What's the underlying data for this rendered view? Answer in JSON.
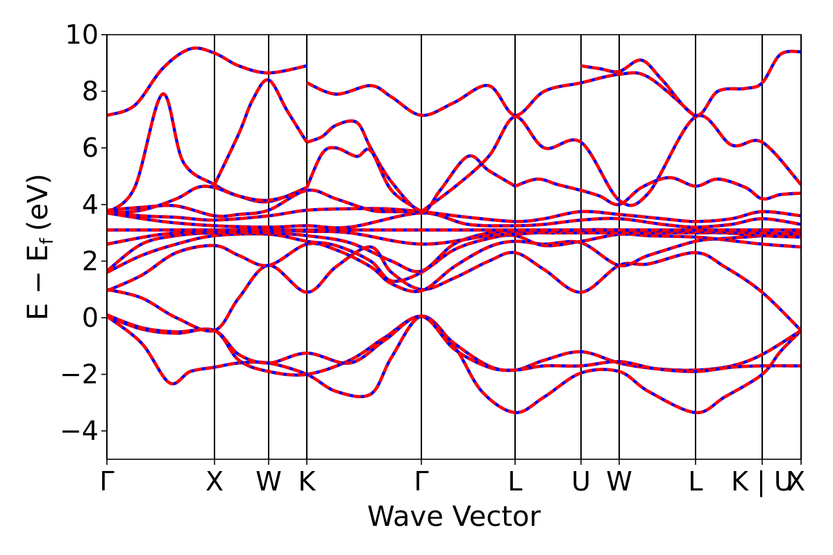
{
  "chart_data": {
    "type": "line",
    "title": "",
    "xlabel": "Wave Vector",
    "ylabel": "E − E",
    "ylabel_subscript": "f",
    "ylabel_unit": "(eV)",
    "ylim": [
      -5,
      10
    ],
    "y_ticks": [
      -4,
      -2,
      0,
      2,
      4,
      6,
      8,
      10
    ],
    "y_tick_labels": [
      "−4",
      "−2",
      "0",
      "2",
      "4",
      "6",
      "8",
      "10"
    ],
    "x_range": [
      0,
      100
    ],
    "kpoint_lines": [
      0,
      15.5,
      23.3,
      28.8,
      45.3,
      58.8,
      68.3,
      73.8,
      84.8,
      94.4,
      100
    ],
    "x_ticks": [
      {
        "label": "Γ",
        "x": 0
      },
      {
        "label": "X",
        "x": 15.5
      },
      {
        "label": "W",
        "x": 23.3
      },
      {
        "label": "K",
        "x": 28.8
      },
      {
        "label": "Γ",
        "x": 45.3
      },
      {
        "label": "L",
        "x": 58.8
      },
      {
        "label": "U",
        "x": 68.3
      },
      {
        "label": "W",
        "x": 73.8
      },
      {
        "label": "L",
        "x": 84.8
      },
      {
        "label": "K | U",
        "x": 94.4
      },
      {
        "label": "X",
        "x": 100
      }
    ],
    "colors": {
      "series_a": "#0000ff",
      "series_b": "#ff0000",
      "frame": "#000000"
    },
    "series": [
      {
        "x": [
          0,
          5,
          9,
          12,
          15.5,
          19,
          23.3,
          28.8,
          33,
          38,
          41,
          45.3,
          50,
          54,
          58.8,
          63,
          68.3,
          73.8,
          78,
          84.8,
          89,
          94.4,
          97,
          100
        ],
        "y": [
          0.05,
          -0.9,
          -2.3,
          -1.9,
          -1.75,
          -1.6,
          -1.6,
          -2.0,
          -2.6,
          -2.7,
          -1.4,
          0.05,
          -1.0,
          -2.6,
          -3.35,
          -2.8,
          -1.95,
          -1.9,
          -2.6,
          -3.35,
          -2.8,
          -2.0,
          -1.2,
          -0.45
        ]
      },
      {
        "x": [
          0,
          5,
          10,
          15.5,
          19,
          23.3,
          28.8,
          35,
          40,
          45.3,
          50,
          55,
          58.8,
          63,
          68.3,
          73.8,
          79,
          84.8,
          90,
          94.4,
          100
        ],
        "y": [
          0.05,
          -0.4,
          -0.55,
          -0.45,
          -1.5,
          -1.9,
          -2.0,
          -1.5,
          -0.7,
          0.05,
          -0.9,
          -1.7,
          -1.85,
          -1.5,
          -1.2,
          -1.6,
          -1.8,
          -1.85,
          -1.7,
          -1.3,
          -0.45
        ]
      },
      {
        "x": [
          0,
          5,
          10,
          15.5,
          19,
          23.3,
          28.8,
          35,
          40,
          45.3,
          50,
          55,
          58.8,
          63,
          68.3,
          73.8,
          79,
          84.8,
          90,
          94.4,
          100
        ],
        "y": [
          0.1,
          -0.35,
          -0.5,
          -0.45,
          -1.3,
          -1.6,
          -1.25,
          -1.6,
          -0.8,
          0.05,
          -1.1,
          -1.75,
          -1.85,
          -1.7,
          -1.7,
          -1.55,
          -1.8,
          -1.9,
          -1.75,
          -1.7,
          -1.7
        ]
      },
      {
        "x": [
          0,
          5,
          10,
          15.5,
          19,
          23.3,
          28.8,
          33,
          38,
          41,
          45.3,
          50,
          55,
          58.8,
          63,
          68.3,
          73.8,
          78,
          84.8,
          89,
          94.4,
          100
        ],
        "y": [
          1.0,
          0.7,
          0.0,
          -0.45,
          0.7,
          1.85,
          0.9,
          1.8,
          2.5,
          1.6,
          1.0,
          1.4,
          2.0,
          2.3,
          1.7,
          0.9,
          1.85,
          1.9,
          2.3,
          1.8,
          0.9,
          -0.45
        ]
      },
      {
        "x": [
          0,
          5,
          10,
          15.5,
          19,
          23.3,
          28.8,
          33,
          38,
          41,
          45.3,
          50,
          55,
          58.8,
          63,
          68.3,
          73.8,
          78,
          84.8,
          89,
          94.4,
          100
        ],
        "y": [
          0.95,
          1.5,
          2.3,
          2.55,
          2.2,
          1.85,
          2.6,
          2.4,
          1.8,
          1.2,
          0.95,
          1.8,
          2.5,
          2.7,
          2.6,
          2.65,
          1.85,
          2.2,
          2.7,
          2.8,
          2.9,
          3.05
        ]
      },
      {
        "x": [
          0,
          5,
          10,
          15.5,
          23.3,
          28.8,
          33,
          38,
          41,
          45.3,
          50,
          55,
          58.8,
          63,
          68.3,
          73.8,
          78,
          84.8,
          89,
          94.4,
          100
        ],
        "y": [
          1.6,
          2.2,
          2.6,
          2.9,
          2.95,
          2.7,
          2.55,
          2.0,
          1.3,
          1.6,
          2.4,
          2.8,
          2.9,
          2.55,
          2.7,
          2.95,
          2.9,
          2.85,
          2.75,
          2.6,
          2.5
        ]
      },
      {
        "x": [
          0,
          5,
          10,
          15.5,
          23.3,
          28.8,
          35,
          41,
          45.3,
          50,
          55,
          58.8,
          63,
          68.3,
          73.8,
          78,
          84.8,
          89,
          94.4,
          100
        ],
        "y": [
          1.65,
          2.6,
          2.9,
          3.0,
          3.0,
          2.9,
          2.65,
          2.0,
          1.65,
          2.6,
          3.0,
          3.05,
          3.0,
          3.0,
          3.0,
          3.0,
          3.0,
          3.0,
          2.9,
          2.85
        ]
      },
      {
        "x": [
          0,
          8,
          15.5,
          23.3,
          28.8,
          35,
          45.3,
          55,
          58.8,
          68.3,
          73.8,
          84.8,
          94.4,
          100
        ],
        "y": [
          2.6,
          2.95,
          3.05,
          3.1,
          3.05,
          3.0,
          2.6,
          2.9,
          2.95,
          3.1,
          3.1,
          3.05,
          3.0,
          2.95
        ]
      },
      {
        "x": [
          0,
          15.5,
          23.3,
          28.8,
          45.3,
          58.8,
          68.3,
          73.8,
          84.8,
          94.4,
          100
        ],
        "y": [
          3.1,
          3.1,
          3.1,
          3.1,
          3.1,
          3.1,
          3.1,
          3.1,
          3.1,
          3.1,
          3.1
        ]
      },
      {
        "x": [
          0,
          8,
          15.5,
          23.3,
          28.8,
          35,
          45.3,
          52,
          58.8,
          63,
          68.3,
          73.8,
          80,
          84.8,
          90,
          94.4,
          100
        ],
        "y": [
          3.7,
          3.4,
          3.25,
          3.2,
          3.25,
          3.2,
          3.7,
          3.3,
          3.25,
          3.3,
          3.45,
          3.5,
          3.3,
          3.2,
          3.3,
          3.5,
          3.3
        ]
      },
      {
        "x": [
          0,
          5,
          10,
          15.5,
          23.3,
          28.8,
          35,
          40,
          45.3,
          52,
          58.8,
          63,
          68.3,
          73.8,
          80,
          84.8,
          90,
          94.4,
          100
        ],
        "y": [
          3.75,
          3.6,
          3.55,
          3.45,
          3.6,
          3.8,
          3.85,
          3.85,
          3.75,
          3.55,
          3.4,
          3.5,
          3.75,
          3.65,
          3.5,
          3.4,
          3.5,
          3.75,
          3.6
        ]
      },
      {
        "x": [
          0,
          5,
          10,
          15.5,
          19,
          23.3,
          28.8,
          33,
          38,
          41,
          45.3
        ],
        "y": [
          3.8,
          3.9,
          3.95,
          3.6,
          3.65,
          3.8,
          4.5,
          4.2,
          3.8,
          3.75,
          3.75
        ]
      },
      {
        "x": [
          0,
          4,
          8,
          11,
          15.5,
          19,
          23.3,
          28.8
        ],
        "y": [
          3.7,
          4.6,
          7.9,
          5.5,
          4.7,
          4.3,
          4.1,
          4.6
        ]
      },
      {
        "x": [
          0,
          5,
          10,
          13,
          15.5,
          19,
          23.3,
          28.8
        ],
        "y": [
          3.7,
          3.8,
          4.2,
          4.6,
          4.6,
          4.3,
          4.15,
          4.5
        ]
      },
      {
        "x": [
          0,
          4,
          8,
          12,
          15.5,
          19,
          23.3,
          28.8
        ],
        "y": [
          7.15,
          7.5,
          8.8,
          9.5,
          9.35,
          8.9,
          8.65,
          8.9
        ]
      },
      {
        "x": [
          15.5,
          19,
          21,
          23.3,
          26,
          28.8
        ],
        "y": [
          4.7,
          6.5,
          7.7,
          8.4,
          7.3,
          6.2
        ]
      },
      {
        "x": [
          28.8,
          31,
          33,
          36,
          38,
          41,
          45.3,
          48,
          52,
          55,
          58.8
        ],
        "y": [
          6.2,
          6.4,
          6.8,
          6.9,
          6.0,
          4.8,
          3.75,
          4.5,
          5.7,
          5.2,
          4.65
        ]
      },
      {
        "x": [
          28.8,
          31,
          33,
          36,
          38,
          41,
          45.3
        ],
        "y": [
          4.6,
          5.8,
          6.0,
          5.7,
          5.9,
          4.5,
          3.75
        ]
      },
      {
        "x": [
          28.8,
          33,
          38,
          41,
          45.3,
          50,
          55,
          58.8,
          63,
          68.3,
          73.8,
          78,
          84.8
        ],
        "y": [
          8.3,
          7.9,
          8.2,
          7.8,
          7.15,
          7.6,
          8.2,
          7.15,
          8.0,
          8.3,
          8.6,
          8.5,
          7.1
        ]
      },
      {
        "x": [
          45.3,
          50,
          55,
          58.8,
          63,
          68.3,
          73.8,
          78,
          84.8,
          90,
          94.4,
          100
        ],
        "y": [
          3.75,
          4.6,
          5.7,
          7.1,
          6.0,
          6.2,
          4.15,
          4.4,
          7.1,
          6.1,
          6.2,
          4.7
        ]
      },
      {
        "x": [
          58.8,
          62,
          65,
          68.3,
          71,
          73.8,
          77,
          81,
          84.8,
          88,
          92,
          94.4,
          97,
          100
        ],
        "y": [
          4.65,
          4.9,
          4.7,
          4.5,
          4.3,
          4.0,
          4.6,
          4.95,
          4.65,
          4.9,
          4.6,
          4.2,
          4.35,
          4.4
        ]
      },
      {
        "x": [
          68.3,
          71,
          73.8,
          77,
          80,
          84.8,
          88,
          92,
          94.4,
          97,
          100
        ],
        "y": [
          8.9,
          8.8,
          8.7,
          9.1,
          8.4,
          7.15,
          8.0,
          8.1,
          8.3,
          9.3,
          9.4
        ]
      }
    ]
  }
}
